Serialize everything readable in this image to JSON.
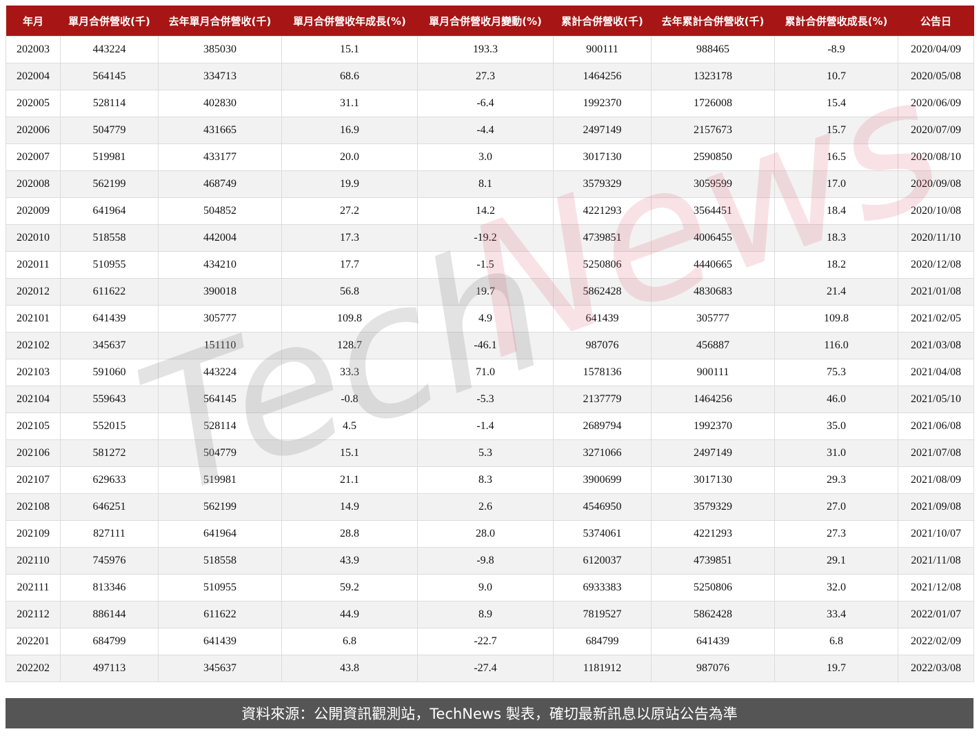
{
  "table": {
    "headers": [
      "年月",
      "單月合併營收(千)",
      "去年單月合併營收(千)",
      "單月合併營收年成長(%)",
      "單月合併營收月變動(%)",
      "累計合併營收(千)",
      "去年累計合併營收(千)",
      "累計合併營收成長(%)",
      "公告日"
    ],
    "rows": [
      [
        "202003",
        "443224",
        "385030",
        "15.1",
        "193.3",
        "900111",
        "988465",
        "-8.9",
        "2020/04/09"
      ],
      [
        "202004",
        "564145",
        "334713",
        "68.6",
        "27.3",
        "1464256",
        "1323178",
        "10.7",
        "2020/05/08"
      ],
      [
        "202005",
        "528114",
        "402830",
        "31.1",
        "-6.4",
        "1992370",
        "1726008",
        "15.4",
        "2020/06/09"
      ],
      [
        "202006",
        "504779",
        "431665",
        "16.9",
        "-4.4",
        "2497149",
        "2157673",
        "15.7",
        "2020/07/09"
      ],
      [
        "202007",
        "519981",
        "433177",
        "20.0",
        "3.0",
        "3017130",
        "2590850",
        "16.5",
        "2020/08/10"
      ],
      [
        "202008",
        "562199",
        "468749",
        "19.9",
        "8.1",
        "3579329",
        "3059599",
        "17.0",
        "2020/09/08"
      ],
      [
        "202009",
        "641964",
        "504852",
        "27.2",
        "14.2",
        "4221293",
        "3564451",
        "18.4",
        "2020/10/08"
      ],
      [
        "202010",
        "518558",
        "442004",
        "17.3",
        "-19.2",
        "4739851",
        "4006455",
        "18.3",
        "2020/11/10"
      ],
      [
        "202011",
        "510955",
        "434210",
        "17.7",
        "-1.5",
        "5250806",
        "4440665",
        "18.2",
        "2020/12/08"
      ],
      [
        "202012",
        "611622",
        "390018",
        "56.8",
        "19.7",
        "5862428",
        "4830683",
        "21.4",
        "2021/01/08"
      ],
      [
        "202101",
        "641439",
        "305777",
        "109.8",
        "4.9",
        "641439",
        "305777",
        "109.8",
        "2021/02/05"
      ],
      [
        "202102",
        "345637",
        "151110",
        "128.7",
        "-46.1",
        "987076",
        "456887",
        "116.0",
        "2021/03/08"
      ],
      [
        "202103",
        "591060",
        "443224",
        "33.3",
        "71.0",
        "1578136",
        "900111",
        "75.3",
        "2021/04/08"
      ],
      [
        "202104",
        "559643",
        "564145",
        "-0.8",
        "-5.3",
        "2137779",
        "1464256",
        "46.0",
        "2021/05/10"
      ],
      [
        "202105",
        "552015",
        "528114",
        "4.5",
        "-1.4",
        "2689794",
        "1992370",
        "35.0",
        "2021/06/08"
      ],
      [
        "202106",
        "581272",
        "504779",
        "15.1",
        "5.3",
        "3271066",
        "2497149",
        "31.0",
        "2021/07/08"
      ],
      [
        "202107",
        "629633",
        "519981",
        "21.1",
        "8.3",
        "3900699",
        "3017130",
        "29.3",
        "2021/08/09"
      ],
      [
        "202108",
        "646251",
        "562199",
        "14.9",
        "2.6",
        "4546950",
        "3579329",
        "27.0",
        "2021/09/08"
      ],
      [
        "202109",
        "827111",
        "641964",
        "28.8",
        "28.0",
        "5374061",
        "4221293",
        "27.3",
        "2021/10/07"
      ],
      [
        "202110",
        "745976",
        "518558",
        "43.9",
        "-9.8",
        "6120037",
        "4739851",
        "29.1",
        "2021/11/08"
      ],
      [
        "202111",
        "813346",
        "510955",
        "59.2",
        "9.0",
        "6933383",
        "5250806",
        "32.0",
        "2021/12/08"
      ],
      [
        "202112",
        "886144",
        "611622",
        "44.9",
        "8.9",
        "7819527",
        "5862428",
        "33.4",
        "2022/01/07"
      ],
      [
        "202201",
        "684799",
        "641439",
        "6.8",
        "-22.7",
        "684799",
        "641439",
        "6.8",
        "2022/02/09"
      ],
      [
        "202202",
        "497113",
        "345637",
        "43.8",
        "-27.4",
        "1181912",
        "987076",
        "19.7",
        "2022/03/08"
      ]
    ]
  },
  "watermark": {
    "part1": "Tech",
    "part2": "News"
  },
  "footer": {
    "source": "資料來源：公開資訊觀測站，TechNews 製表，確切最新訊息以原站公告為準"
  },
  "colors": {
    "header_bg": "#a81515",
    "footer_bg": "#555555",
    "row_alt": "#f2f2f2"
  }
}
